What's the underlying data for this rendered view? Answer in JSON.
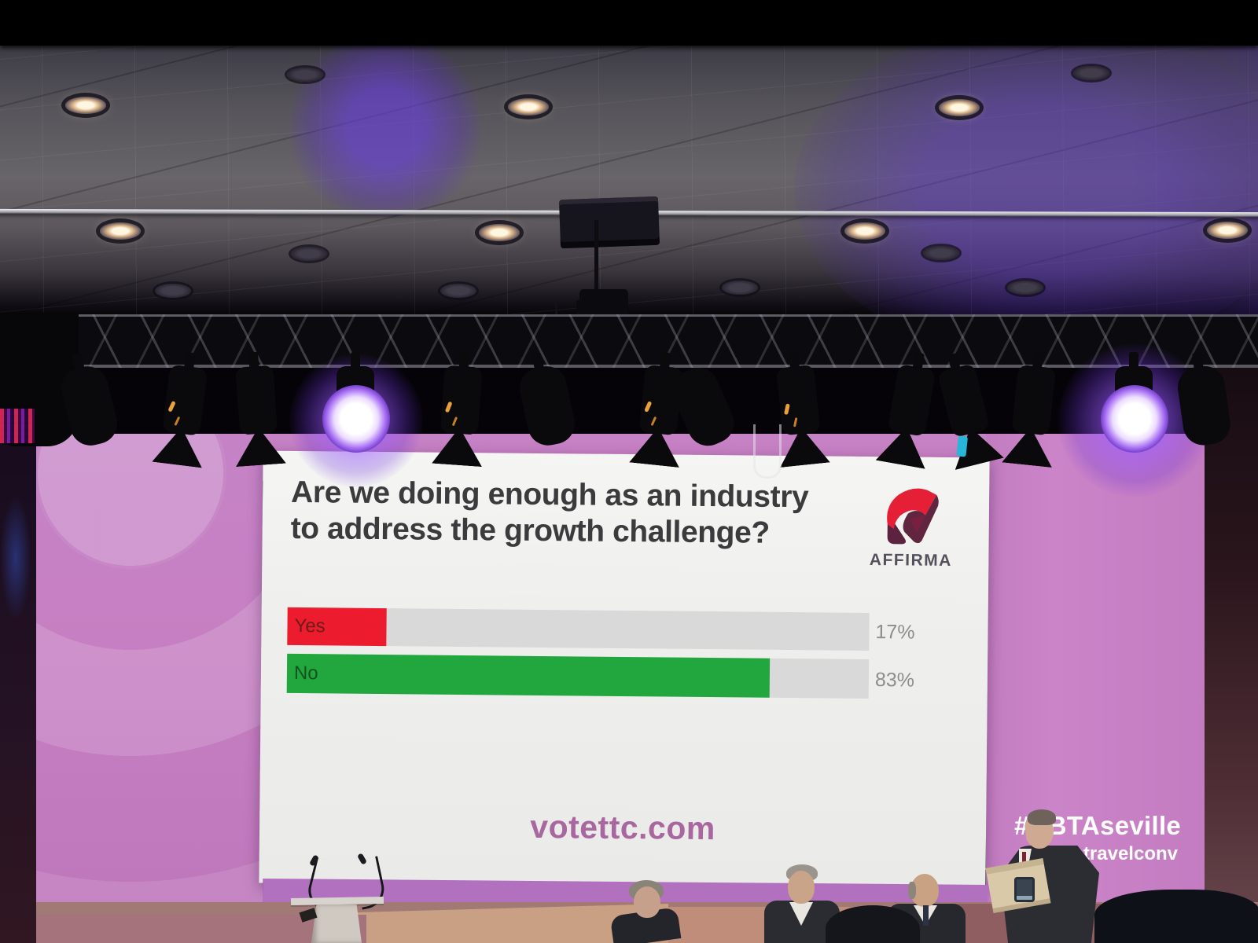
{
  "slide": {
    "title_lines": [
      "Are we doing enough as an industry",
      "to address the growth challenge?"
    ],
    "logo_text": "AFFIRMA",
    "footer_url": "votettc.com"
  },
  "poll": {
    "track_color": "#d9d9d9",
    "options": [
      {
        "label": "Yes",
        "pct": 17,
        "display": "17%",
        "color": "#ec1c2e"
      },
      {
        "label": "No",
        "pct": 83,
        "display": "83%",
        "color": "#21a73e"
      }
    ]
  },
  "backdrop": {
    "hashtag": "#ABTAseville",
    "handle": "@thetravelconv",
    "pink_color": "#c67fc2"
  },
  "brand_colors": {
    "logo_red": "#e51f35",
    "logo_maroon": "#5d2240",
    "url_purple": "#a8689f"
  },
  "chart_data": {
    "type": "bar",
    "orientation": "horizontal",
    "title": "Are we doing enough as an industry to address the growth challenge?",
    "categories": [
      "Yes",
      "No"
    ],
    "values": [
      17,
      83
    ],
    "value_labels": [
      "17%",
      "83%"
    ],
    "colors": [
      "#ec1c2e",
      "#21a73e"
    ],
    "xlim": [
      0,
      100
    ],
    "legend": "none",
    "grid": false
  }
}
